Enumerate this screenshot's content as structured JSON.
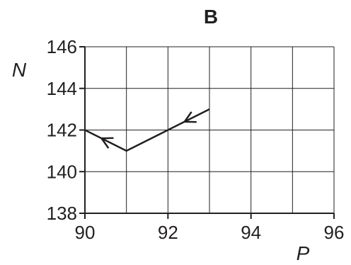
{
  "chart_data": {
    "type": "line",
    "title": "B",
    "xlabel": "P",
    "ylabel": "N",
    "xlim": [
      90,
      96
    ],
    "ylim": [
      138,
      146
    ],
    "xticks": [
      90,
      92,
      94,
      96
    ],
    "yticks": [
      138,
      140,
      142,
      144,
      146
    ],
    "xgrid": [
      90,
      91,
      92,
      93,
      94,
      95,
      96
    ],
    "ygrid": [
      138,
      140,
      142,
      144,
      146
    ],
    "grid": true,
    "series": [
      {
        "points": [
          {
            "x": 93,
            "y": 143
          },
          {
            "x": 92,
            "y": 142
          },
          {
            "x": 91,
            "y": 141
          },
          {
            "x": 90,
            "y": 142
          }
        ],
        "direction": "decreasing-x",
        "arrows": [
          {
            "x": 92.4,
            "y": 142.4
          },
          {
            "x": 90.4,
            "y": 141.6
          }
        ]
      }
    ]
  }
}
